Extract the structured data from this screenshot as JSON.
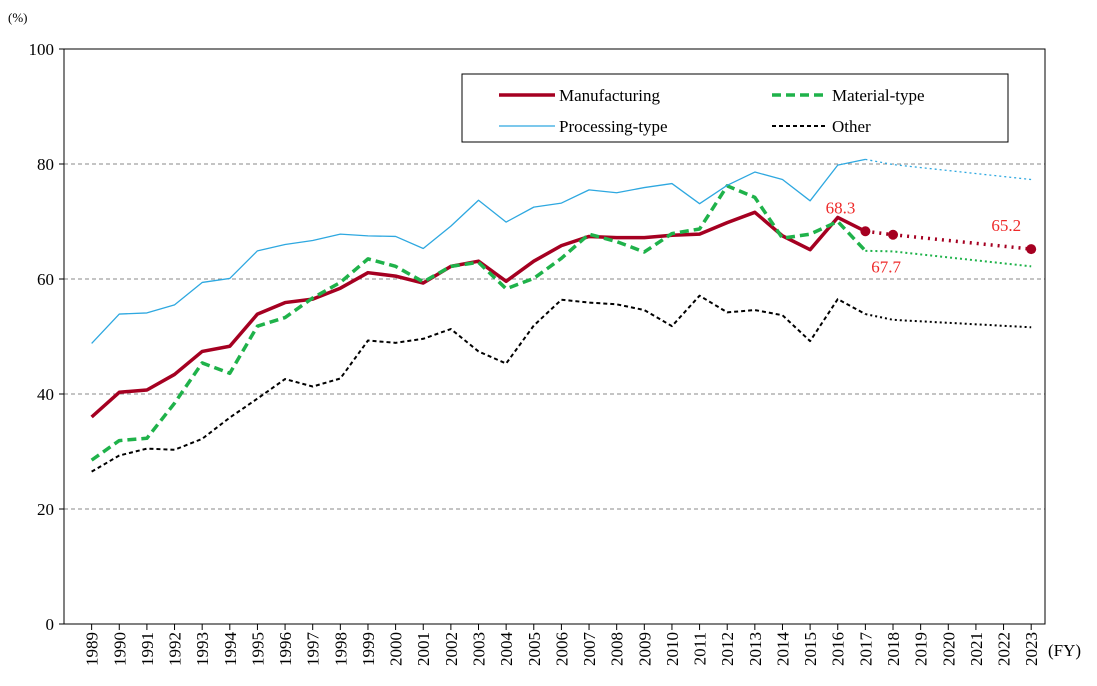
{
  "chart_data": {
    "type": "line",
    "y_unit": "(%)",
    "x_label": "(FY)",
    "x": [
      1989,
      1990,
      1991,
      1992,
      1993,
      1994,
      1995,
      1996,
      1997,
      1998,
      1999,
      2000,
      2001,
      2002,
      2003,
      2004,
      2005,
      2006,
      2007,
      2008,
      2009,
      2010,
      2011,
      2012,
      2013,
      2014,
      2015,
      2016,
      2017,
      2018,
      2023
    ],
    "projection_from_x": 2017,
    "series": [
      {
        "name": "Manufacturing",
        "color": "#a50021",
        "style": "solid-thick",
        "values": [
          36.0,
          40.3,
          40.7,
          43.4,
          47.4,
          48.3,
          53.9,
          55.9,
          56.5,
          58.4,
          61.1,
          60.5,
          59.3,
          62.2,
          63.1,
          59.6,
          63.1,
          65.8,
          67.4,
          67.2,
          67.2,
          67.6,
          67.8,
          69.8,
          71.6,
          67.5,
          65.1,
          70.7,
          68.3,
          67.7,
          65.2
        ],
        "data_labels_at": [
          2017,
          2018,
          2023
        ],
        "label_color": "#ee2a2a"
      },
      {
        "name": "Material-type",
        "color": "#1fb24a",
        "style": "dashed-thick",
        "values": [
          28.5,
          31.9,
          32.3,
          38.4,
          45.4,
          43.6,
          51.8,
          53.3,
          56.7,
          59.4,
          63.5,
          62.2,
          59.5,
          62.2,
          62.9,
          58.3,
          60.1,
          63.6,
          67.8,
          66.5,
          64.7,
          67.9,
          68.7,
          76.2,
          74.2,
          67.1,
          67.8,
          70.0,
          64.9,
          64.8,
          62.2
        ]
      },
      {
        "name": "Processing-type",
        "color": "#2ea8e0",
        "style": "solid-thin",
        "values": [
          48.8,
          53.9,
          54.1,
          55.5,
          59.4,
          60.1,
          64.9,
          66.0,
          66.7,
          67.8,
          67.5,
          67.4,
          65.3,
          69.2,
          73.7,
          69.9,
          72.5,
          73.2,
          75.5,
          75.0,
          75.9,
          76.6,
          73.1,
          76.3,
          78.6,
          77.3,
          73.6,
          79.8,
          80.8,
          79.9,
          77.3
        ]
      },
      {
        "name": "Other",
        "color": "#000000",
        "style": "dashed-thin",
        "values": [
          26.5,
          29.3,
          30.5,
          30.3,
          32.2,
          35.9,
          39.2,
          42.6,
          41.3,
          42.7,
          49.3,
          48.9,
          49.6,
          51.3,
          47.4,
          45.3,
          51.9,
          56.4,
          55.9,
          55.6,
          54.6,
          51.8,
          57.1,
          54.2,
          54.6,
          53.7,
          49.2,
          56.5,
          53.9,
          52.9,
          51.6
        ]
      }
    ],
    "xlim": [
      1988,
      2023.5
    ],
    "xticks": [
      1989,
      1990,
      1991,
      1992,
      1993,
      1994,
      1995,
      1996,
      1997,
      1998,
      1999,
      2000,
      2001,
      2002,
      2003,
      2004,
      2005,
      2006,
      2007,
      2008,
      2009,
      2010,
      2011,
      2012,
      2013,
      2014,
      2015,
      2016,
      2017,
      2018,
      2019,
      2020,
      2021,
      2022,
      2023
    ],
    "ylim": [
      0,
      100
    ],
    "yticks": [
      0,
      20,
      40,
      60,
      80,
      100
    ],
    "grid": true
  }
}
